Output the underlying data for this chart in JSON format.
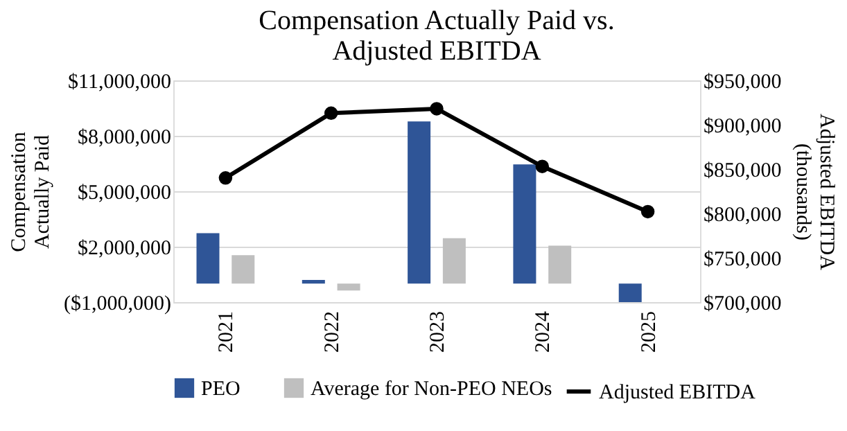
{
  "chart_data": {
    "type": "bar",
    "title": "Compensation Actually Paid vs.\nAdjusted EBITDA",
    "ylabel": "Compensation Actually Paid",
    "y2label": "Adjusted EBITDA (thousands)",
    "categories": [
      "2021",
      "2022",
      "2023",
      "2024",
      "2025"
    ],
    "series": [
      {
        "name": "PEO",
        "color": "#2f5597",
        "values": [
          2730000,
          200000,
          8780000,
          6450000,
          -1000000
        ]
      },
      {
        "name": "Average for Non-PEO NEOs",
        "color": "#bfbfbf",
        "values": [
          1540000,
          -370000,
          2460000,
          2060000,
          null
        ]
      },
      {
        "name": "Adjusted EBITDA",
        "color": "#000000",
        "type": "line",
        "axis": "y2",
        "marker": "circle",
        "values": [
          840000,
          913000,
          918000,
          853000,
          802000
        ]
      }
    ],
    "ylim": [
      -1000000,
      11000000
    ],
    "yticks": [
      {
        "value": -1000000,
        "label": "($1,000,000)"
      },
      {
        "value": 2000000,
        "label": "$2,000,000"
      },
      {
        "value": 5000000,
        "label": "$5,000,000"
      },
      {
        "value": 8000000,
        "label": "$8,000,000"
      },
      {
        "value": 11000000,
        "label": "$11,000,000"
      }
    ],
    "y2lim": [
      700000,
      950000
    ],
    "y2ticks": [
      {
        "value": 700000,
        "label": "$700,000"
      },
      {
        "value": 750000,
        "label": "$750,000"
      },
      {
        "value": 800000,
        "label": "$800,000"
      },
      {
        "value": 850000,
        "label": "$850,000"
      },
      {
        "value": 900000,
        "label": "$900,000"
      },
      {
        "value": 950000,
        "label": "$950,000"
      }
    ],
    "grid": "y",
    "legend": "bottom"
  }
}
